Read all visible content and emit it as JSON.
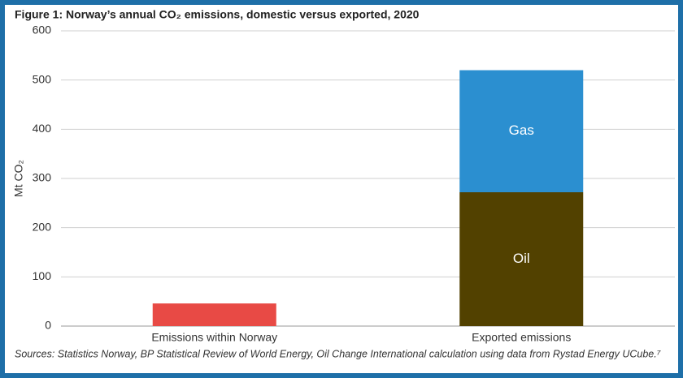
{
  "chart_data": {
    "type": "stacked-bar",
    "title": "Figure 1: Norway’s annual CO₂ emissions, domestic versus exported, 2020",
    "y_label": "Mt CO₂",
    "source": "Sources: Statistics Norway, BP Statistical Review of World Energy, Oil Change International calculation using data from Rystad Energy UCube.⁷",
    "categories": [
      "Emissions within Norway",
      "Exported emissions"
    ],
    "series": [
      {
        "color": "#e84a45",
        "values": [
          46,
          null
        ]
      },
      {
        "name": "Oil",
        "color": "#524100",
        "values": [
          null,
          272
        ]
      },
      {
        "name": "Gas",
        "color": "#2b8fd0",
        "values": [
          null,
          248
        ]
      }
    ],
    "ylim": [
      0,
      600
    ],
    "yticks": [
      0,
      100,
      200,
      300,
      400,
      500,
      600
    ],
    "grid": true
  }
}
